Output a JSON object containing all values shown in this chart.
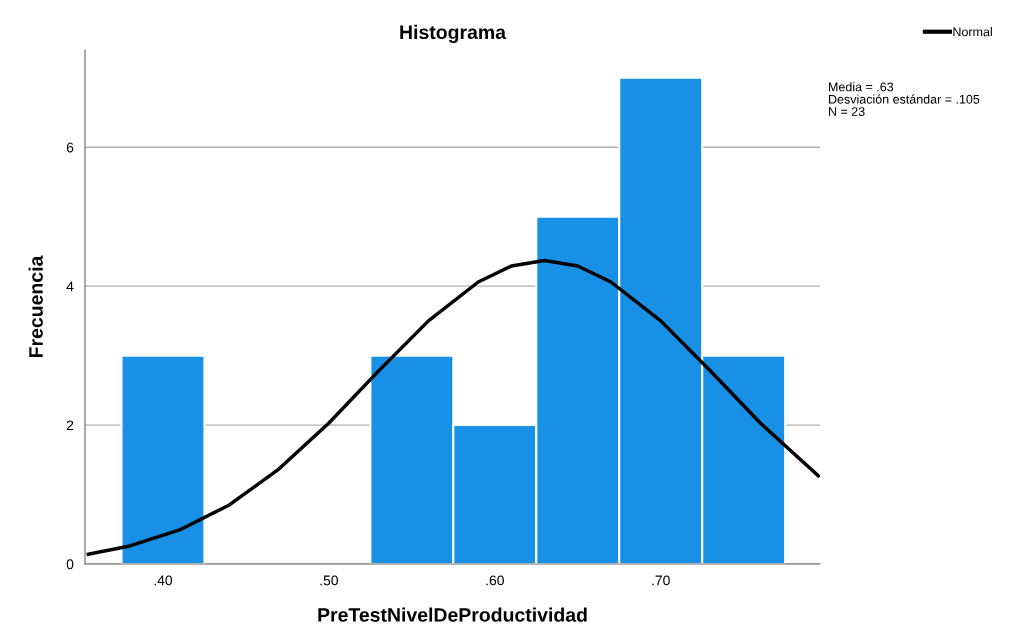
{
  "chart_data": {
    "type": "histogram",
    "title": "Histograma",
    "xlabel": "PreTestNivelDeProductividad",
    "ylabel": "Frecuencia",
    "bins": [
      0.375,
      0.425,
      0.475,
      0.525,
      0.575,
      0.625,
      0.675,
      0.725,
      0.775
    ],
    "values": [
      3,
      0,
      0,
      3,
      2,
      5,
      7,
      3
    ],
    "color": "#1790e6",
    "series": [
      {
        "name": "Normal",
        "type": "line",
        "color": "#000000",
        "x": [
          0.355,
          0.38,
          0.41,
          0.44,
          0.47,
          0.5,
          0.53,
          0.56,
          0.59,
          0.61,
          0.63,
          0.65,
          0.67,
          0.7,
          0.73,
          0.76,
          0.795
        ],
        "values": [
          0.14,
          0.26,
          0.49,
          0.85,
          1.37,
          2.03,
          2.78,
          3.5,
          4.06,
          4.29,
          4.37,
          4.29,
          4.06,
          3.5,
          2.78,
          2.03,
          1.27
        ]
      }
    ],
    "xlim": [
      0.353,
      0.796
    ],
    "ylim": [
      0,
      7.4
    ],
    "xticks": [
      {
        "value": 0.4,
        "label": ".40"
      },
      {
        "value": 0.5,
        "label": ".50"
      },
      {
        "value": 0.6,
        "label": ".60"
      },
      {
        "value": 0.7,
        "label": ".70"
      }
    ],
    "yticks": [
      0,
      2,
      4,
      6
    ],
    "grid": "y",
    "legend": "top right",
    "annotations": [
      "Media = .63",
      "Desviación estándar = .105",
      "N = 23"
    ]
  }
}
